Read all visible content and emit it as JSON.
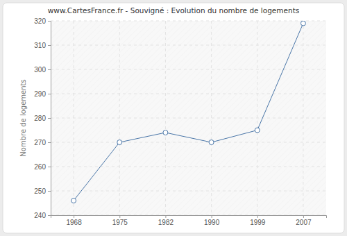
{
  "chart_data": {
    "type": "line",
    "title": "www.CartesFrance.fr - Souvigné : Evolution du nombre de logements",
    "y_label": "Nombre de logements",
    "categories": [
      "1968",
      "1975",
      "1982",
      "1990",
      "1999",
      "2007"
    ],
    "values": [
      246,
      270,
      274,
      270,
      275,
      319
    ],
    "color": "#4a76a8",
    "marker": "circle",
    "ylim": [
      240,
      320
    ],
    "yticks": [
      240,
      250,
      260,
      270,
      280,
      290,
      300,
      310,
      320
    ],
    "grid": true
  }
}
